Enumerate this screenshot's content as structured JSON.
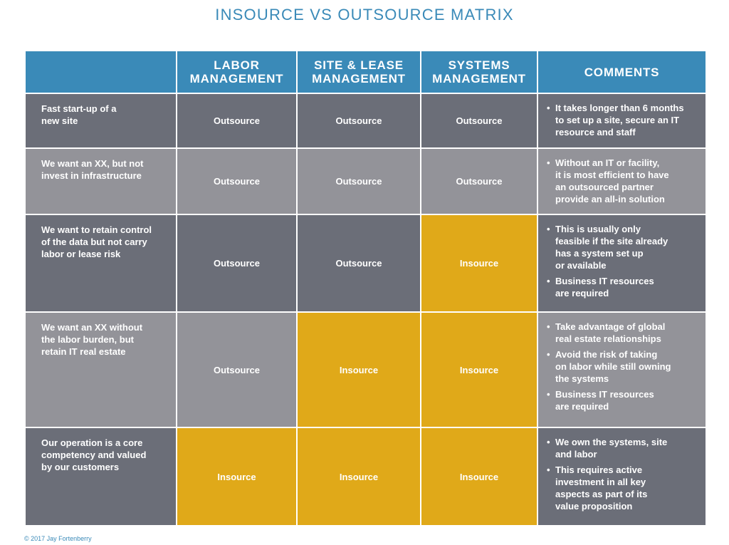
{
  "title": "INSOURCE VS OUTSOURCE MATRIX",
  "headers": [
    [
      "LABOR",
      "MANAGEMENT"
    ],
    [
      "SITE & LEASE",
      "MANAGEMENT"
    ],
    [
      "SYSTEMS",
      "MANAGEMENT"
    ],
    [
      "COMMENTS"
    ]
  ],
  "rows": [
    {
      "scenario": [
        "Fast start-up of a",
        "new site"
      ],
      "labor": "Outsource",
      "site": "Outsource",
      "systems": "Outsource",
      "comments": [
        [
          "It takes longer than 6 months",
          "to set up a site, secure an IT",
          "resource and staff"
        ]
      ]
    },
    {
      "scenario": [
        "We want an XX, but not",
        "invest in infrastructure"
      ],
      "labor": "Outsource",
      "site": "Outsource",
      "systems": "Outsource",
      "comments": [
        [
          "Without an IT or facility,",
          "it is most efficient to have",
          "an outsourced partner",
          "provide an all-in solution"
        ]
      ]
    },
    {
      "scenario": [
        "We want to retain control",
        "of the data but not carry",
        "labor or lease risk"
      ],
      "labor": "Outsource",
      "site": "Outsource",
      "systems": "Insource",
      "comments": [
        [
          "This is usually only",
          "feasible if the site already",
          "has a system set up",
          "or available"
        ],
        [
          "Business IT resources",
          "are required"
        ]
      ]
    },
    {
      "scenario": [
        "We want an XX without",
        "the labor burden, but",
        "retain IT real estate"
      ],
      "labor": "Outsource",
      "site": "Insource",
      "systems": "Insource",
      "comments": [
        [
          "Take advantage of global",
          "real estate relationships"
        ],
        [
          "Avoid the risk of taking",
          "on labor while still owning",
          "the systems"
        ],
        [
          "Business IT resources",
          "are required"
        ]
      ]
    },
    {
      "scenario": [
        "Our operation is a core",
        "competency and valued",
        "by our customers"
      ],
      "labor": "Insource",
      "site": "Insource",
      "systems": "Insource",
      "comments": [
        [
          "We own the systems, site",
          "and labor"
        ],
        [
          "This requires active",
          "investment in all key",
          "aspects as part of its",
          "value proposition"
        ]
      ]
    }
  ],
  "bullet_char": "•",
  "footer": "© 2017 Jay Fortenberry",
  "colors": {
    "header": "#3a8ab8",
    "row_dark": "#6b6e78",
    "row_light": "#939399",
    "insource": "#e0a919"
  }
}
